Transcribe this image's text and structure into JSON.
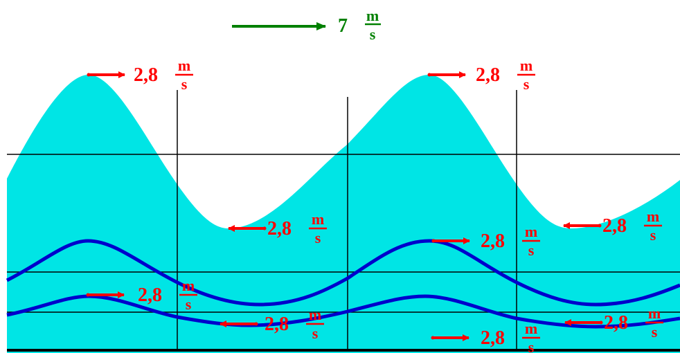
{
  "colors": {
    "water": "#00e5e5",
    "gridline": "#000000",
    "particle_path": "#0000cc",
    "velocity_arrow": "#ff0000",
    "wave_speed_arrow": "#008000"
  },
  "wave_speed": {
    "value": "7",
    "unit_num": "m",
    "unit_den": "s"
  },
  "velocity_labels": [
    {
      "value": "2,8",
      "unit_num": "m",
      "unit_den": "s",
      "direction": "right"
    },
    {
      "value": "2,8",
      "unit_num": "m",
      "unit_den": "s",
      "direction": "right"
    },
    {
      "value": "2,8",
      "unit_num": "m",
      "unit_den": "s",
      "direction": "left"
    },
    {
      "value": "2,8",
      "unit_num": "m",
      "unit_den": "s",
      "direction": "left"
    },
    {
      "value": "2,8",
      "unit_num": "m",
      "unit_den": "s",
      "direction": "right"
    },
    {
      "value": "2,8",
      "unit_num": "m",
      "unit_den": "s",
      "direction": "right"
    },
    {
      "value": "2,8",
      "unit_num": "m",
      "unit_den": "s",
      "direction": "left"
    },
    {
      "value": "2,8",
      "unit_num": "m",
      "unit_den": "s",
      "direction": "right"
    },
    {
      "value": "2,8",
      "unit_num": "m",
      "unit_den": "s",
      "direction": "left"
    }
  ]
}
